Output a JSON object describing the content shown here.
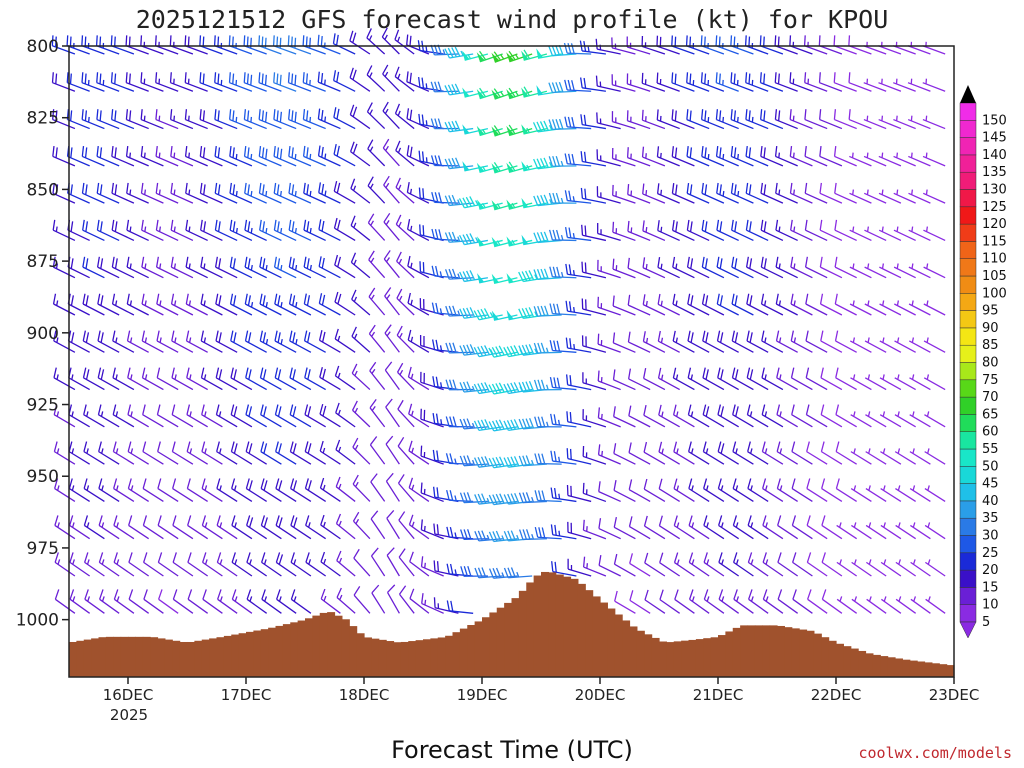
{
  "chart_data": {
    "type": "wind_barb_profile",
    "title": "2025121512 GFS forecast wind profile (kt) for KPOU",
    "xlabel": "Forecast Time (UTC)",
    "ylabel": "",
    "x_ticks": [
      "16DEC",
      "17DEC",
      "18DEC",
      "19DEC",
      "20DEC",
      "21DEC",
      "22DEC",
      "23DEC"
    ],
    "x_tick_sublabel": "2025",
    "y_ticks": [
      800,
      825,
      850,
      875,
      900,
      925,
      950,
      975,
      1000
    ],
    "y_range": [
      800,
      1020
    ],
    "x_range_days": [
      15.5,
      23.0
    ],
    "colorbar": {
      "levels": [
        5,
        10,
        15,
        20,
        25,
        30,
        35,
        40,
        45,
        50,
        55,
        60,
        65,
        70,
        75,
        80,
        85,
        90,
        95,
        100,
        105,
        110,
        115,
        120,
        125,
        130,
        135,
        140,
        145,
        150
      ],
      "colors": [
        "#8a2be2",
        "#6a1fd6",
        "#3a10c8",
        "#1a2ad8",
        "#1e58e6",
        "#2a7ae6",
        "#2a9ee8",
        "#1fc0e8",
        "#19d8d8",
        "#19e6c8",
        "#19e6a0",
        "#20dc5a",
        "#30d028",
        "#58d818",
        "#a8e81a",
        "#e6f01a",
        "#f4e614",
        "#f4c814",
        "#f4a814",
        "#f08c14",
        "#f07818",
        "#f06418",
        "#f03c18",
        "#f01818",
        "#f01848",
        "#f01c78",
        "#f02098",
        "#f024b4",
        "#f028d0",
        "#f02ce8"
      ]
    },
    "surface_pressure": {
      "days": [
        15.5,
        15.8,
        16.2,
        16.5,
        16.8,
        17.2,
        17.5,
        17.7,
        17.85,
        18.0,
        18.3,
        18.7,
        19.0,
        19.3,
        19.45,
        19.55,
        19.8,
        20.0,
        20.3,
        20.55,
        20.8,
        21.0,
        21.2,
        21.5,
        21.8,
        22.0,
        22.3,
        22.6,
        23.0
      ],
      "pressure": [
        1008,
        1006,
        1006,
        1008,
        1006,
        1003,
        1000,
        997,
        1000,
        1006,
        1008,
        1006,
        1000,
        992,
        985,
        983,
        986,
        993,
        1003,
        1008,
        1007,
        1006,
        1002,
        1002,
        1004,
        1008,
        1012,
        1014,
        1016
      ]
    },
    "wind_barbs_note": "Wind barbs at each pressure level every ~3h; colour = speed (kt) per colorbar"
  },
  "credit": "coolwx.com/models"
}
